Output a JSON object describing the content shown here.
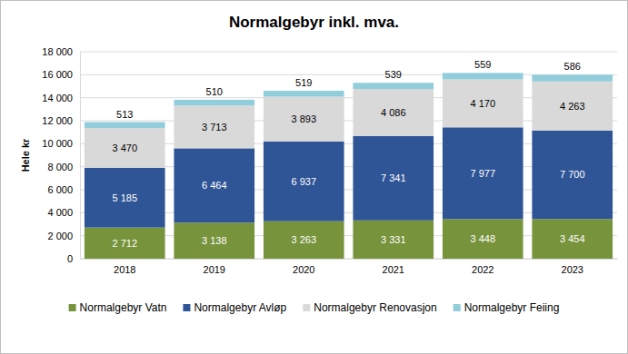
{
  "chart_data": {
    "type": "bar",
    "title": "Normalgebyr inkl. mva.",
    "y_label": "Hele kr",
    "stacked": true,
    "data_labels": true,
    "grid": true,
    "legend": "bottom",
    "categories": [
      "2018",
      "2019",
      "2020",
      "2021",
      "2022",
      "2023"
    ],
    "ylim": [
      0,
      18000
    ],
    "yticks": [
      0,
      {
        "value": 2000,
        "label": "2 000"
      },
      {
        "value": 4000,
        "label": "4 000"
      },
      {
        "value": 6000,
        "label": "6 000"
      },
      {
        "value": 8000,
        "label": "8 000"
      },
      {
        "value": 10000,
        "label": "10 000"
      },
      {
        "value": 12000,
        "label": "12 000"
      },
      {
        "value": 14000,
        "label": "14 000"
      },
      {
        "value": 16000,
        "label": "16 000"
      },
      {
        "value": 18000,
        "label": "18 000"
      }
    ],
    "series": [
      {
        "name": "Normalgebyr Vatn",
        "color": "#77933c",
        "values": [
          2712,
          3138,
          3263,
          3331,
          3448,
          3454
        ],
        "value_labels": [
          "2 712",
          "3 138",
          "3 263",
          "3 331",
          "3 448",
          "3 454"
        ]
      },
      {
        "name": "Normalgebyr Avløp",
        "color": "#2f5597",
        "values": [
          5185,
          6464,
          6937,
          7341,
          7977,
          7700
        ],
        "value_labels": [
          "5 185",
          "6 464",
          "6 937",
          "7 341",
          "7 977",
          "7 700"
        ]
      },
      {
        "name": "Normalgebyr Renovasjon",
        "color": "#d9d9d9",
        "values": [
          3470,
          3713,
          3893,
          4086,
          4170,
          4263
        ],
        "value_labels": [
          "3 470",
          "3 713",
          "3 893",
          "4 086",
          "4 170",
          "4 263"
        ]
      },
      {
        "name": "Normalgebyr Feiing",
        "color": "#92cddc",
        "values": [
          513,
          510,
          519,
          539,
          559,
          586
        ],
        "value_labels": [
          "513",
          "510",
          "519",
          "539",
          "559",
          "586"
        ]
      }
    ]
  }
}
